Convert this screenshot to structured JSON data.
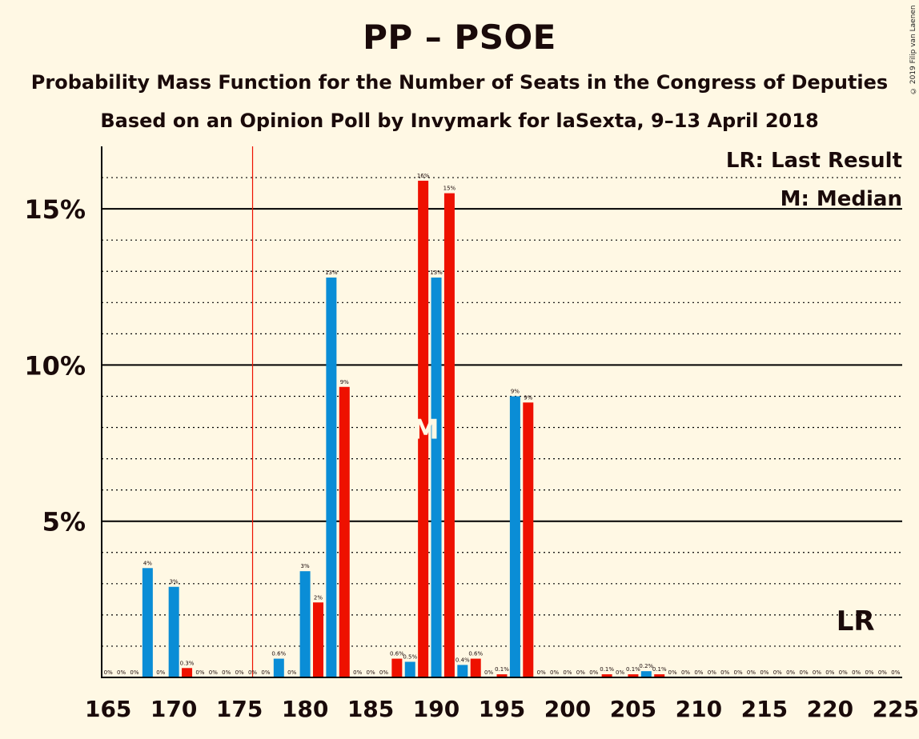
{
  "header": {
    "title": "PP – PSOE",
    "subtitle": "Probability Mass Function for the Number of Seats in the Congress of Deputies",
    "subtitle2": "Based on an Opinion Poll by Invymark for laSexta, 9–13 April 2018",
    "copyright": "© 2019 Filip van Laenen"
  },
  "chart_data": {
    "type": "bar",
    "x": [
      165,
      166,
      167,
      168,
      169,
      170,
      171,
      172,
      173,
      174,
      175,
      176,
      177,
      178,
      179,
      180,
      181,
      182,
      183,
      184,
      185,
      186,
      187,
      188,
      189,
      190,
      191,
      192,
      193,
      194,
      195,
      196,
      197,
      198,
      199,
      200,
      201,
      202,
      203,
      204,
      205,
      206,
      207,
      208,
      209,
      210,
      211,
      212,
      213,
      214,
      215,
      216,
      217,
      218,
      219,
      220,
      221,
      222,
      223,
      224,
      225
    ],
    "values": [
      0,
      0,
      0,
      3.5,
      0,
      2.9,
      0.3,
      0,
      0,
      0,
      0,
      0,
      0,
      0.6,
      0,
      3.4,
      2.4,
      12.8,
      9.3,
      0,
      0,
      0,
      0.6,
      0.5,
      15.9,
      12.8,
      15.5,
      0.4,
      0.6,
      0,
      0.1,
      9.0,
      8.8,
      0,
      0,
      0,
      0,
      0,
      0.1,
      0,
      0.1,
      0.2,
      0.1,
      0,
      0,
      0,
      0,
      0,
      0,
      0,
      0,
      0,
      0,
      0,
      0,
      0,
      0,
      0,
      0,
      0,
      0
    ],
    "value_labels": [
      "0%",
      "0%",
      "0%",
      "4%",
      "0%",
      "3%",
      "0.3%",
      "0%",
      "0%",
      "0%",
      "0%",
      "0%",
      "0%",
      "0.6%",
      "0%",
      "3%",
      "2%",
      "13%",
      "9%",
      "0%",
      "0%",
      "0%",
      "0.6%",
      "0.5%",
      "16%",
      "13%",
      "15%",
      "0.4%",
      "0.6%",
      "0%",
      "0.1%",
      "9%",
      "9%",
      "0%",
      "0%",
      "0%",
      "0%",
      "0%",
      "0.1%",
      "0%",
      "0.1%",
      "0.2%",
      "0.1%",
      "0%",
      "0%",
      "0%",
      "0%",
      "0%",
      "0%",
      "0%",
      "0%",
      "0%",
      "0%",
      "0%",
      "0%",
      "0%",
      "0%",
      "0%",
      "0%",
      "0%",
      "0%"
    ],
    "bar_colors_by_parity": {
      "even": "#0a8dd6",
      "odd": "#ee1100"
    },
    "x_ticks": [
      165,
      170,
      175,
      180,
      185,
      190,
      195,
      200,
      205,
      210,
      215,
      220,
      225
    ],
    "x_tick_labels": [
      "165",
      "170",
      "175",
      "180",
      "185",
      "190",
      "195",
      "200",
      "205",
      "210",
      "215",
      "220",
      "225"
    ],
    "y_ticks": [
      5,
      10,
      15
    ],
    "y_tick_labels": [
      "5%",
      "10%",
      "15%"
    ],
    "ylim": [
      0,
      17
    ],
    "xlim": [
      164.5,
      225.5
    ],
    "minor_grid_step": 1,
    "majority_line": 176,
    "majority_color": "#ee1100",
    "median": 189,
    "median_label": "M",
    "last_result": 222,
    "last_result_label": "LR",
    "legend": [
      "LR: Last Result",
      "M: Median"
    ],
    "legend_position": "top-right"
  }
}
